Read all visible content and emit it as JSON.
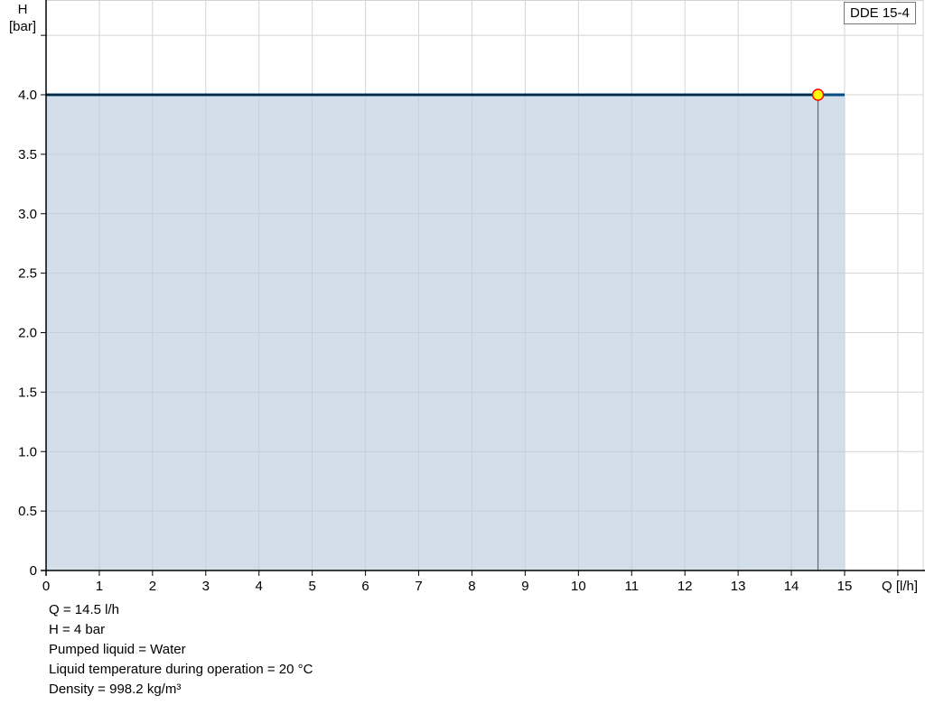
{
  "chart_data": {
    "type": "area",
    "title": "",
    "xlabel": "Q [l/h]",
    "ylabel_line1": "H",
    "ylabel_line2": "[bar]",
    "xlim": [
      0,
      16
    ],
    "ylim": [
      0,
      4.5
    ],
    "xticks": [
      0,
      1,
      2,
      3,
      4,
      5,
      6,
      7,
      8,
      9,
      10,
      11,
      12,
      13,
      14,
      15
    ],
    "yticks": [
      "0",
      "0.5",
      "1.0",
      "1.5",
      "2.0",
      "2.5",
      "3.0",
      "3.5",
      "4.0"
    ],
    "grid": true,
    "series": [
      {
        "name": "DDE 15-4",
        "x": [
          0,
          15
        ],
        "y": [
          4.0,
          4.0
        ],
        "color": "#004a80",
        "fill": "#d0dce8"
      }
    ],
    "duty_point": {
      "x": 14.5,
      "y": 4.0,
      "color": "#ffff00",
      "stroke": "#ff0000"
    },
    "legend": "top-right"
  },
  "info": [
    "Q = 14.5 l/h",
    "H = 4 bar",
    "Pumped liquid = Water",
    "Liquid temperature during operation = 20 °C",
    "Density = 998.2 kg/m³"
  ]
}
